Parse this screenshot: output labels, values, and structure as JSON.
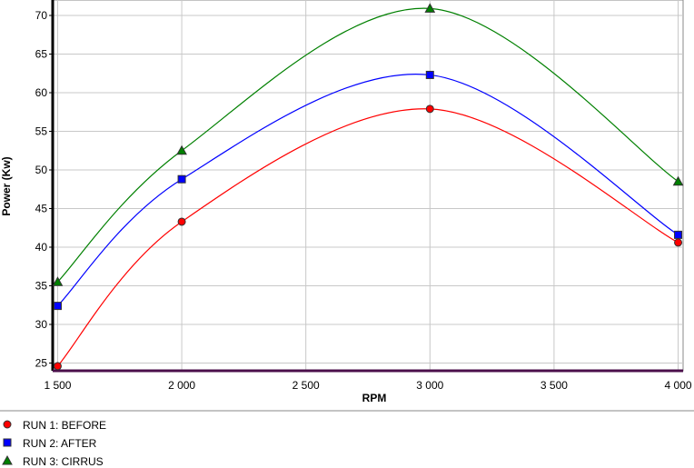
{
  "chart_data": {
    "type": "line",
    "x_label": "RPM",
    "y_label": "Power (Kw)",
    "x": [
      1500,
      2000,
      3000,
      4000
    ],
    "series": [
      {
        "name": "RUN 1: BEFORE",
        "color": "#ff0000",
        "marker": "circle",
        "values": [
          24.6,
          43.3,
          57.9,
          40.6
        ]
      },
      {
        "name": "RUN 2: AFTER",
        "color": "#0000ff",
        "marker": "square",
        "values": [
          32.4,
          48.8,
          62.3,
          41.6
        ]
      },
      {
        "name": "RUN 3: CIRRUS",
        "color": "#008000",
        "marker": "triangle",
        "values": [
          35.5,
          52.5,
          70.9,
          48.5
        ]
      }
    ],
    "xlim": [
      1480,
      4020
    ],
    "xticks": [
      {
        "value": 1500,
        "label": "1 500"
      },
      {
        "value": 2000,
        "label": "2 000"
      },
      {
        "value": 2500,
        "label": "2 500"
      },
      {
        "value": 3000,
        "label": "3 000"
      },
      {
        "value": 3500,
        "label": "3 500"
      },
      {
        "value": 4000,
        "label": "4 000"
      }
    ],
    "ylim": [
      24,
      72
    ],
    "yticks": [
      25,
      30,
      35,
      40,
      45,
      50,
      55,
      60,
      65,
      70
    ],
    "grid": true
  }
}
